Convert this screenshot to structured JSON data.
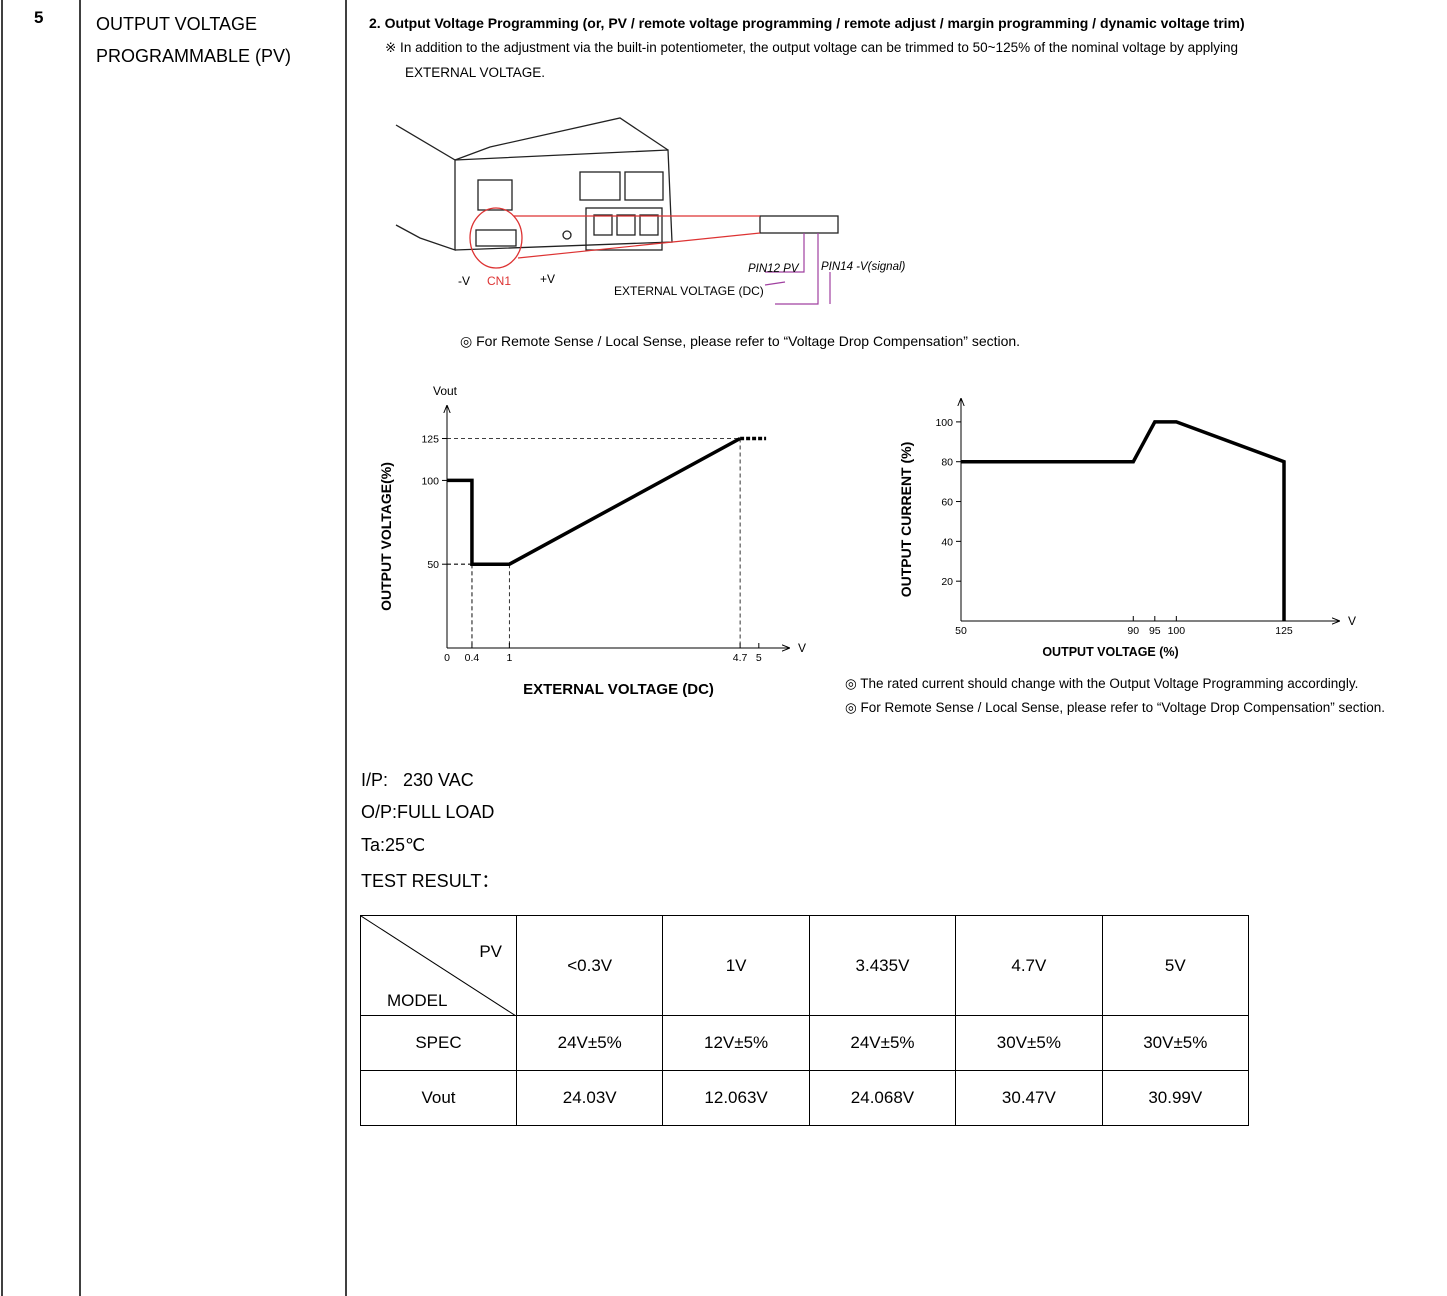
{
  "row": {
    "number": "5",
    "item": "OUTPUT VOLTAGE PROGRAMMABLE (PV)"
  },
  "section": {
    "title": "2. Output Voltage Programming (or, PV / remote voltage programming / remote adjust / margin programming / dynamic voltage trim)",
    "note_line1": "※ In addition to the adjustment via the built-in potentiometer, the output voltage can be trimmed to 50~125% of the nominal voltage by applying",
    "note_line2": "EXTERNAL VOLTAGE.",
    "remote_note": "◎ For Remote Sense / Local Sense, please refer to “Voltage Drop Compensation” section."
  },
  "diagram": {
    "minus_v": "-V",
    "cn1": "CN1",
    "plus_v": "+V",
    "pin12": "PIN12 PV",
    "pin14": "PIN14 -V(signal)",
    "external": "EXTERNAL VOLTAGE (DC)"
  },
  "chart_data": [
    {
      "type": "line",
      "y_name": "Vout",
      "y_label": "OUTPUT VOLTAGE(%)",
      "x_label": "EXTERNAL VOLTAGE (DC)",
      "x_unit": "V",
      "x": [
        0,
        0.4,
        0.4,
        1,
        4.7
      ],
      "values": [
        100,
        100,
        50,
        50,
        125
      ],
      "color": "#000000",
      "xlim": [
        0,
        5.5
      ],
      "ylim": [
        0,
        145
      ],
      "xticks": [
        0,
        0.4,
        1,
        4.7,
        5
      ],
      "yticks": [
        50,
        100,
        125
      ],
      "guides": true,
      "dotted_extension": true
    },
    {
      "type": "line",
      "y_label": "OUTPUT CURRENT (%)",
      "x_label": "OUTPUT VOLTAGE (%)",
      "x_unit": "V",
      "x": [
        50,
        90,
        95,
        100,
        125,
        125
      ],
      "values": [
        80,
        80,
        100,
        100,
        80,
        0
      ],
      "color": "#000000",
      "xlim": [
        50,
        138
      ],
      "ylim": [
        0,
        112
      ],
      "xticks": [
        50,
        90,
        95,
        100,
        125
      ],
      "yticks": [
        20,
        40,
        60,
        80,
        100
      ],
      "guides": false,
      "dotted_extension": false
    }
  ],
  "chart_notes": [
    "◎ The rated current should change with the Output Voltage Programming accordingly.",
    "◎ For Remote Sense / Local Sense, please refer to “Voltage Drop Compensation” section."
  ],
  "test": {
    "lines": [
      "I/P:   230 VAC",
      "O/P:FULL LOAD",
      "Ta:25℃",
      "TEST RESULT："
    ]
  },
  "table": {
    "corner_top": "PV",
    "corner_bottom": "MODEL",
    "columns": [
      "<0.3V",
      "1V",
      "3.435V",
      "4.7V",
      "5V"
    ],
    "rows": [
      [
        "SPEC",
        "24V±5%",
        "12V±5%",
        "24V±5%",
        "30V±5%",
        "30V±5%"
      ],
      [
        "Vout",
        "24.03V",
        "12.063V",
        "24.068V",
        "30.47V",
        "30.99V"
      ]
    ]
  }
}
